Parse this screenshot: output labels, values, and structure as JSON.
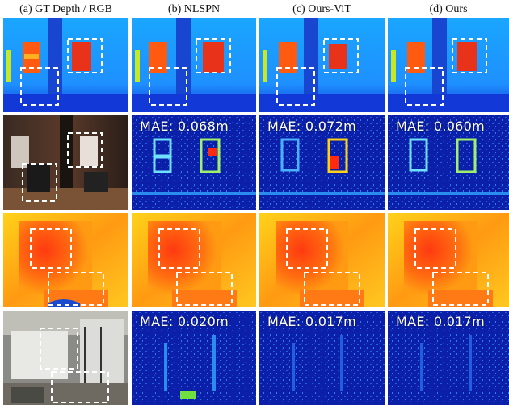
{
  "headers": {
    "gt": "(a) GT Depth / RGB",
    "nlspn": "(b) NLSPN",
    "ours_vit": "(c) Ours-ViT",
    "ours": "(d) Ours"
  },
  "mae": {
    "row2_nlspn": "MAE: 0.068m",
    "row2_ours_vit": "MAE: 0.072m",
    "row2_ours": "MAE: 0.060m",
    "row4_nlspn": "MAE: 0.020m",
    "row4_ours_vit": "MAE: 0.017m",
    "row4_ours": "MAE: 0.017m"
  }
}
